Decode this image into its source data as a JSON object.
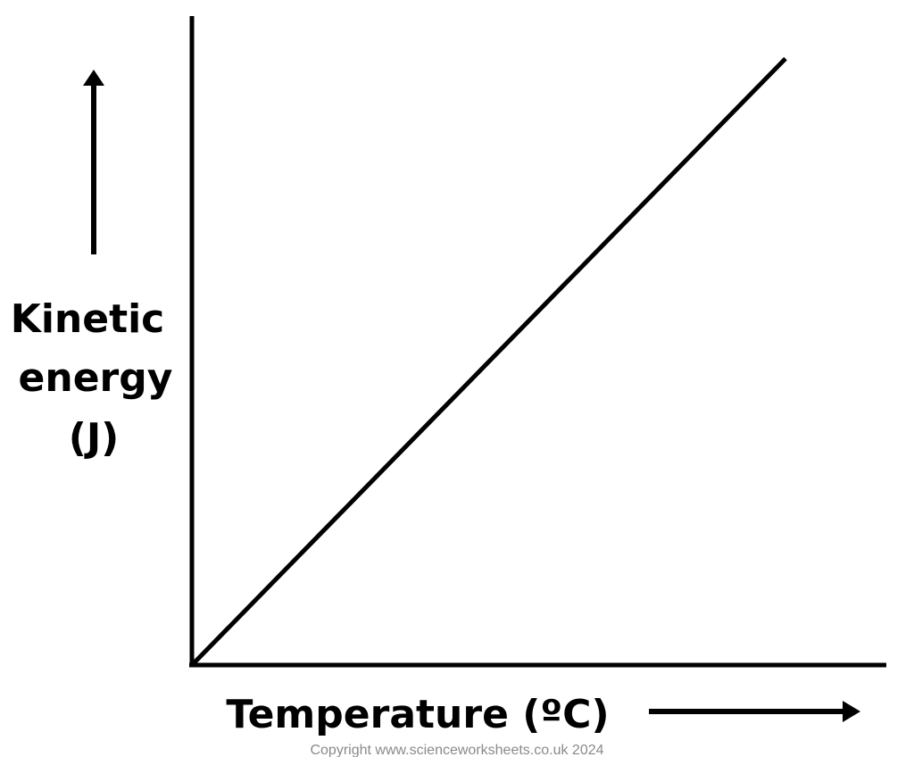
{
  "chart_data": {
    "type": "line",
    "title": "",
    "xlabel": "Temperature (ºC)",
    "ylabel_lines": [
      "Kinetic",
      "energy",
      "(J)"
    ],
    "series": [
      {
        "x": [
          0,
          1
        ],
        "y": [
          0,
          1
        ],
        "color": "#000000"
      }
    ],
    "xlim": [
      0,
      1.17
    ],
    "ylim": [
      0,
      1.07
    ],
    "grid": false,
    "ticks": false,
    "x_direction_arrow": true,
    "y_direction_arrow": true
  },
  "footer": {
    "copyright": "Copyright www.scienceworksheets.co.uk 2024"
  }
}
